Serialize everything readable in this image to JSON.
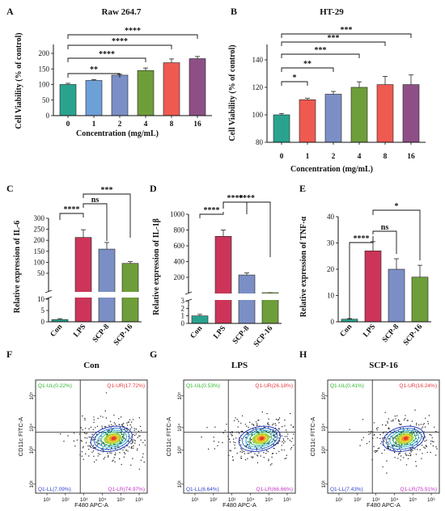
{
  "colors": {
    "teal": "#2aa38e",
    "lightblue": "#6ea0d8",
    "slate": "#7b8fc6",
    "green": "#6e9e3a",
    "red": "#ee5a50",
    "purple": "#8e4f86",
    "crimson": "#cc3559",
    "quad_ul": "#2db52d",
    "quad_ur": "#e8343a",
    "quad_ll": "#3344cc",
    "quad_lr": "#c233c2"
  },
  "chart_data": [
    {
      "panel": "A",
      "type": "bar",
      "title": "Raw 264.7",
      "xlabel": "Concentration (mg/mL)",
      "ylabel": "Cell Viability (% of control)",
      "categories": [
        "0",
        "1",
        "2",
        "4",
        "8",
        "16"
      ],
      "values": [
        100,
        113,
        130,
        145,
        170,
        183
      ],
      "errors": [
        4,
        3,
        3,
        8,
        12,
        7
      ],
      "ylim": [
        0,
        250
      ],
      "yticks": [
        "0",
        "50",
        "100",
        "150",
        "200"
      ],
      "brackets": [
        {
          "from": 0,
          "to": 2,
          "label": "**"
        },
        {
          "from": 0,
          "to": 3,
          "label": "****"
        },
        {
          "from": 0,
          "to": 4,
          "label": "****"
        },
        {
          "from": 0,
          "to": 5,
          "label": "****"
        }
      ]
    },
    {
      "panel": "B",
      "type": "bar",
      "title": "HT-29",
      "xlabel": "Concentration (mg/mL)",
      "ylabel": "Cell Viability (% of control)",
      "categories": [
        "0",
        "1",
        "2",
        "4",
        "8",
        "16"
      ],
      "values": [
        100,
        111,
        115,
        120,
        122,
        122
      ],
      "errors": [
        1,
        1,
        2,
        4,
        6,
        7
      ],
      "ylim": [
        80,
        150
      ],
      "yticks": [
        "80",
        "100",
        "120",
        "140"
      ],
      "brackets": [
        {
          "from": 0,
          "to": 1,
          "label": "*"
        },
        {
          "from": 0,
          "to": 2,
          "label": "**"
        },
        {
          "from": 0,
          "to": 3,
          "label": "***"
        },
        {
          "from": 0,
          "to": 4,
          "label": "***"
        },
        {
          "from": 0,
          "to": 5,
          "label": "***"
        }
      ]
    },
    {
      "panel": "C",
      "type": "bar",
      "ylabel": "Relative expression of IL-6",
      "categories": [
        "Con",
        "LPS",
        "SCP-8",
        "SCP-16"
      ],
      "values": [
        1,
        213,
        160,
        95
      ],
      "errors": [
        0.4,
        35,
        30,
        8
      ],
      "yticks": [
        "0",
        "5",
        "10",
        "50",
        "100",
        "150",
        "200",
        "250",
        "300"
      ],
      "brackets": [
        {
          "from": 0,
          "to": 1,
          "label": "****"
        },
        {
          "from": 1,
          "to": 2,
          "label": "ns"
        },
        {
          "from": 1,
          "to": 3,
          "label": "***"
        }
      ]
    },
    {
      "panel": "D",
      "type": "bar",
      "ylabel": "Relative expression of IL-1β",
      "categories": [
        "Con",
        "LPS",
        "SCP-8",
        "SCP-16"
      ],
      "values": [
        1,
        720,
        230,
        90
      ],
      "errors": [
        0.2,
        80,
        25,
        15
      ],
      "yticks": [
        "0",
        "1",
        "2",
        "3",
        "200",
        "400",
        "600",
        "800",
        "1000"
      ],
      "brackets": [
        {
          "from": 0,
          "to": 1,
          "label": "****"
        },
        {
          "from": 1,
          "to": 2,
          "label": "****"
        },
        {
          "from": 1,
          "to": 3,
          "label": "****"
        }
      ]
    },
    {
      "panel": "E",
      "type": "bar",
      "ylabel": "Relative expression of TNF-α",
      "categories": [
        "Con",
        "LPS",
        "SCP-8",
        "SCP-16"
      ],
      "values": [
        1,
        27,
        20,
        17
      ],
      "errors": [
        0.2,
        3.5,
        4,
        4.5
      ],
      "ylim": [
        0,
        40
      ],
      "yticks": [
        "0",
        "10",
        "20",
        "30",
        "40"
      ],
      "brackets": [
        {
          "from": 0,
          "to": 1,
          "label": "****"
        },
        {
          "from": 1,
          "to": 2,
          "label": "ns"
        },
        {
          "from": 1,
          "to": 3,
          "label": "*"
        }
      ]
    }
  ],
  "flow_panels": [
    {
      "panel": "F",
      "title": "Con",
      "xlabel": "F480 APC-A",
      "ylabel": "CD11c FITC-A",
      "quadrants": {
        "ul": "Q1-UL(0.22%)",
        "ur": "Q1-UR(17.72%)",
        "ll": "Q1-LL(7.09%)",
        "lr": "Q1-LR(74.97%)"
      }
    },
    {
      "panel": "G",
      "title": "LPS",
      "xlabel": "F480 APC-A",
      "ylabel": "CD11c FITC-A",
      "quadrants": {
        "ul": "Q1-UL(0.53%)",
        "ur": "Q1-UR(26.18%)",
        "ll": "Q1-LL(6.64%)",
        "lr": "Q1-LR(66.66%)"
      }
    },
    {
      "panel": "H",
      "title": "SCP-16",
      "xlabel": "F480 APC-A",
      "ylabel": "CD11c FITC-A",
      "quadrants": {
        "ul": "Q1-UL(0.41%)",
        "ur": "Q1-UR(16.24%)",
        "ll": "Q1-LL(7.43%)",
        "lr": "Q1-LR(75.91%)"
      }
    }
  ],
  "flow_ticks": {
    "x": [
      "10¹",
      "10²",
      "10³",
      "10⁴",
      "10⁵",
      "10⁶"
    ],
    "y": [
      "10¹",
      "10³",
      "10⁴",
      "10⁵"
    ]
  }
}
